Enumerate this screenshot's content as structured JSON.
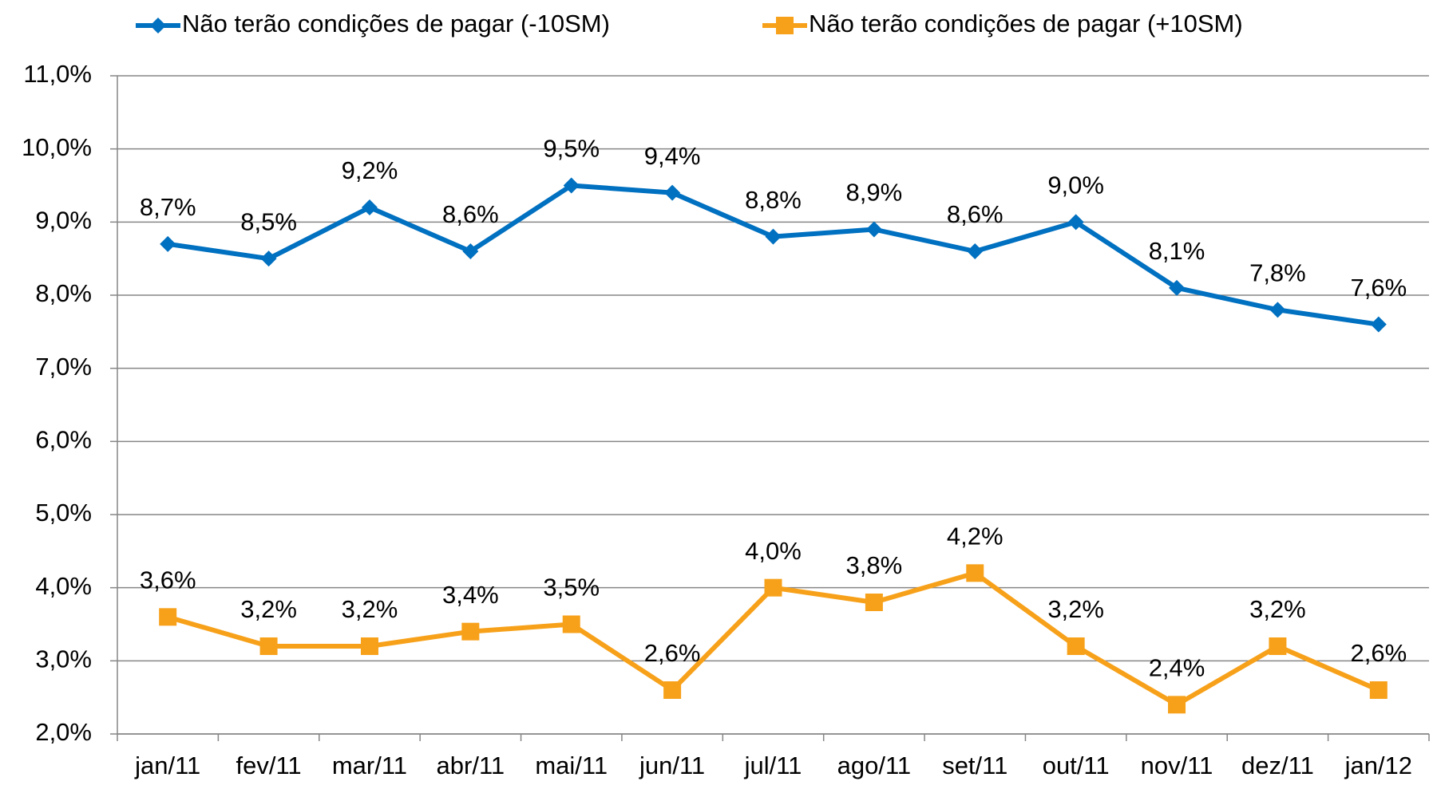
{
  "chart_data": {
    "type": "line",
    "categories": [
      "jan/11",
      "fev/11",
      "mar/11",
      "abr/11",
      "mai/11",
      "jun/11",
      "jul/11",
      "ago/11",
      "set/11",
      "out/11",
      "nov/11",
      "dez/11",
      "jan/12"
    ],
    "series": [
      {
        "name": "Não terão condições de pagar (-10SM)",
        "color": "#0070c0",
        "marker": "diamond",
        "values": [
          8.7,
          8.5,
          9.2,
          8.6,
          9.5,
          9.4,
          8.8,
          8.9,
          8.6,
          9.0,
          8.1,
          7.8,
          7.6
        ],
        "value_labels": [
          "8,7%",
          "8,5%",
          "9,2%",
          "8,6%",
          "9,5%",
          "9,4%",
          "8,8%",
          "8,9%",
          "8,6%",
          "9,0%",
          "8,1%",
          "7,8%",
          "7,6%"
        ]
      },
      {
        "name": "Não terão condições de pagar (+10SM)",
        "color": "#f7a11a",
        "marker": "square",
        "values": [
          3.6,
          3.2,
          3.2,
          3.4,
          3.5,
          2.6,
          4.0,
          3.8,
          4.2,
          3.2,
          2.4,
          3.2,
          2.6
        ],
        "value_labels": [
          "3,6%",
          "3,2%",
          "3,2%",
          "3,4%",
          "3,5%",
          "2,6%",
          "4,0%",
          "3,8%",
          "4,2%",
          "3,2%",
          "2,4%",
          "3,2%",
          "2,6%"
        ]
      }
    ],
    "ylim": [
      2,
      11
    ],
    "yticks": [
      {
        "value": 2,
        "label": "2,0%"
      },
      {
        "value": 3,
        "label": "3,0%"
      },
      {
        "value": 4,
        "label": "4,0%"
      },
      {
        "value": 5,
        "label": "5,0%"
      },
      {
        "value": 6,
        "label": "6,0%"
      },
      {
        "value": 7,
        "label": "7,0%"
      },
      {
        "value": 8,
        "label": "8,0%"
      },
      {
        "value": 9,
        "label": "9,0%"
      },
      {
        "value": 10,
        "label": "10,0%"
      },
      {
        "value": 11,
        "label": "11,0%"
      }
    ],
    "grid": true,
    "legend": "top"
  }
}
